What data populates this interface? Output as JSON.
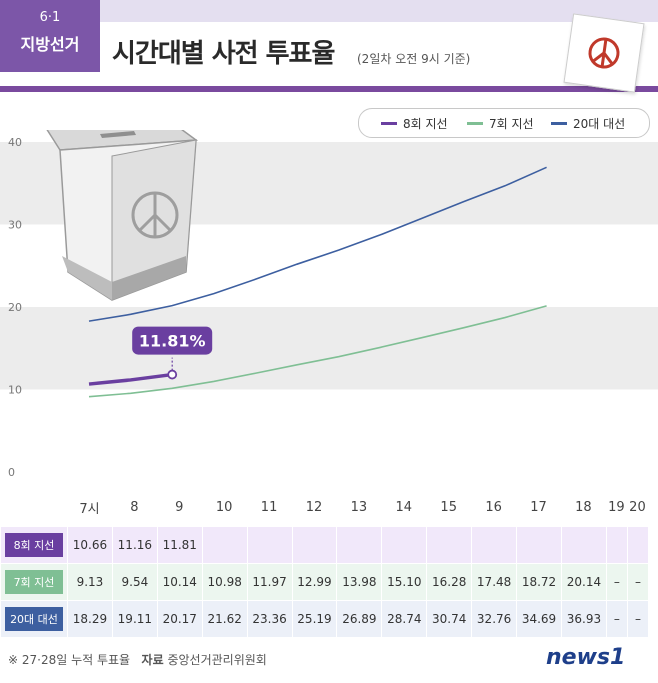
{
  "header": {
    "badge_date": "6·1",
    "badge_title": "지방선거",
    "title": "시간대별 사전 투표율",
    "subtitle": "(2일차 오전 9시 기준)"
  },
  "colors": {
    "series_8": "#6a3fa0",
    "series_7": "#7fbf94",
    "series_20": "#3d5fa0",
    "badge": "#7c56a8"
  },
  "chart_data": {
    "type": "line",
    "x": [
      "7시",
      "8",
      "9",
      "10",
      "11",
      "12",
      "13",
      "14",
      "15",
      "16",
      "17",
      "18",
      "19",
      "20"
    ],
    "ylim": [
      0,
      40
    ],
    "yticks": [
      "0",
      "10",
      "20",
      "30",
      "40"
    ],
    "series": [
      {
        "name": "8회 지선",
        "values": [
          10.66,
          11.16,
          11.81,
          null,
          null,
          null,
          null,
          null,
          null,
          null,
          null,
          null,
          null,
          null
        ]
      },
      {
        "name": "7회 지선",
        "values": [
          9.13,
          9.54,
          10.14,
          10.98,
          11.97,
          12.99,
          13.98,
          15.1,
          16.28,
          17.48,
          18.72,
          20.14,
          null,
          null
        ]
      },
      {
        "name": "20대 대선",
        "values": [
          18.29,
          19.11,
          20.17,
          21.62,
          23.36,
          25.19,
          26.89,
          28.74,
          30.74,
          32.76,
          34.69,
          36.93,
          null,
          null
        ]
      }
    ],
    "annotation": "11.81%",
    "grid": "alternating bands"
  },
  "table": {
    "columns": [
      "7시",
      "8",
      "9",
      "10",
      "11",
      "12",
      "13",
      "14",
      "15",
      "16",
      "17",
      "18",
      "19",
      "20"
    ],
    "rows": [
      {
        "label": "8회 지선",
        "cells": [
          "10.66",
          "11.16",
          "11.81",
          "",
          "",
          "",
          "",
          "",
          "",
          "",
          "",
          "",
          "",
          ""
        ]
      },
      {
        "label": "7회 지선",
        "cells": [
          "9.13",
          "9.54",
          "10.14",
          "10.98",
          "11.97",
          "12.99",
          "13.98",
          "15.10",
          "16.28",
          "17.48",
          "18.72",
          "20.14",
          "–",
          "–"
        ]
      },
      {
        "label": "20대 대선",
        "cells": [
          "18.29",
          "19.11",
          "20.17",
          "21.62",
          "23.36",
          "25.19",
          "26.89",
          "28.74",
          "30.74",
          "32.76",
          "34.69",
          "36.93",
          "–",
          "–"
        ]
      }
    ]
  },
  "footer": {
    "note": "※ 27·28일 누적 투표율",
    "source_label": "자료",
    "source": "중앙선거관리위원회",
    "logo": "news1"
  }
}
